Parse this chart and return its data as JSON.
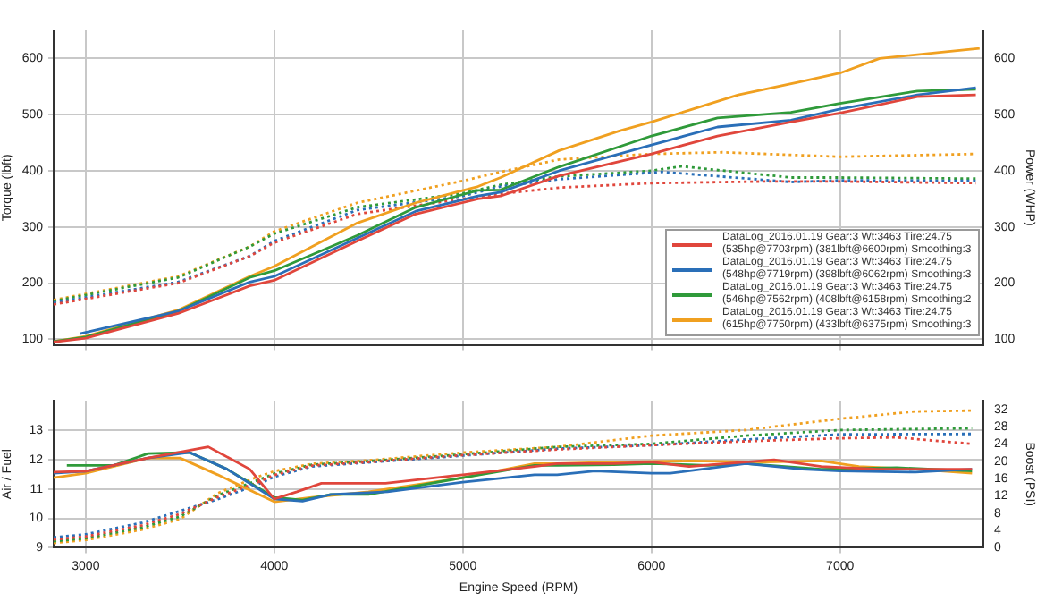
{
  "chart_data": [
    {
      "type": "line",
      "ylabel": "Torque (lbft)",
      "y2label": "Power (WHP)",
      "xlim": [
        2830,
        7760
      ],
      "xticks": [
        3000,
        4000,
        5000,
        6000,
        7000
      ],
      "ylim": [
        90,
        650
      ],
      "yticks": [
        100,
        200,
        300,
        400,
        500,
        600
      ],
      "y2lim": [
        90,
        650
      ],
      "y2ticks": [
        100,
        200,
        300,
        400,
        500,
        600
      ],
      "grid": true,
      "legend": "bottom right",
      "tick_labels": "y",
      "series": [
        {
          "name": "DataLog_2016.01.19 Gear:3 Wt:3463 Tire:24.75 (535hp@7703rpm) (381lbft@6600rpm) Smoothing:3",
          "color": "#e0463c",
          "axis": "y2",
          "x": [
            2830,
            3000,
            3490,
            3870,
            4000,
            4440,
            4750,
            5080,
            5200,
            5510,
            6000,
            6350,
            6740,
            7000,
            7410,
            7720
          ],
          "values": [
            95,
            102,
            146,
            195,
            205,
            275,
            323,
            350,
            355,
            391,
            430,
            462,
            487,
            503,
            532,
            535
          ]
        },
        {
          "name": "DataLog_2016.01.19 Gear:3 Wt:3463 Tire:24.75 (548hp@7719rpm) (398lbft@6062rpm) Smoothing:3",
          "color": "#2a6fb8",
          "axis": "y2",
          "x": [
            2970,
            3490,
            3870,
            4000,
            4440,
            4750,
            5080,
            5200,
            5510,
            6000,
            6350,
            6740,
            7000,
            7410,
            7720
          ],
          "values": [
            110,
            150,
            202,
            212,
            280,
            328,
            355,
            362,
            400,
            446,
            478,
            490,
            510,
            535,
            548
          ]
        },
        {
          "name": "DataLog_2016.01.19 Gear:3 Wt:3463 Tire:24.75 (546hp@7562rpm) (408lbft@6158rpm) Smoothing:2",
          "color": "#2f9a3a",
          "axis": "y2",
          "x": [
            2830,
            3000,
            3490,
            3870,
            4000,
            4440,
            4750,
            5080,
            5200,
            5510,
            6000,
            6350,
            6740,
            7000,
            7410,
            7720
          ],
          "values": [
            96,
            104,
            150,
            210,
            222,
            285,
            335,
            365,
            366,
            407,
            462,
            494,
            504,
            520,
            542,
            545
          ]
        },
        {
          "name": "DataLog_2016.01.19 Gear:3 Wt:3463 Tire:24.75 (615hp@7750rpm) (433lbft@6375rpm) Smoothing:3",
          "color": "#f0a020",
          "axis": "y2",
          "x": [
            2830,
            3000,
            3490,
            3870,
            4000,
            4440,
            4750,
            5080,
            5200,
            5510,
            5830,
            6000,
            6460,
            6780,
            7000,
            7210,
            7740
          ],
          "values": [
            96,
            105,
            152,
            212,
            230,
            307,
            343,
            372,
            388,
            436,
            471,
            487,
            535,
            558,
            574,
            600,
            618
          ]
        },
        {
          "color": "#e0463c",
          "line_style": "dotted",
          "x": [
            2830,
            3490,
            3870,
            4000,
            4440,
            5000,
            5200,
            5510,
            6000,
            6600,
            7000,
            7720
          ],
          "values": [
            162,
            200,
            248,
            272,
            323,
            350,
            359,
            370,
            378,
            381,
            381,
            378
          ]
        },
        {
          "color": "#2a6fb8",
          "line_style": "dotted",
          "x": [
            2830,
            3490,
            3870,
            4000,
            4440,
            5000,
            5200,
            5510,
            6062,
            6740,
            7000,
            7720
          ],
          "values": [
            165,
            202,
            248,
            275,
            330,
            355,
            372,
            385,
            398,
            380,
            383,
            382
          ]
        },
        {
          "color": "#2f9a3a",
          "line_style": "dotted",
          "x": [
            2830,
            3490,
            3870,
            4000,
            4440,
            5000,
            5200,
            5510,
            6000,
            6158,
            6740,
            7000,
            7720
          ],
          "values": [
            168,
            210,
            265,
            288,
            335,
            360,
            375,
            390,
            400,
            408,
            388,
            388,
            386
          ]
        },
        {
          "color": "#f0a020",
          "line_style": "dotted",
          "x": [
            2830,
            3490,
            3870,
            4000,
            4440,
            5000,
            5200,
            5510,
            6000,
            6375,
            7000,
            7720
          ],
          "values": [
            170,
            212,
            265,
            292,
            343,
            382,
            398,
            420,
            430,
            433,
            425,
            430
          ]
        }
      ]
    },
    {
      "type": "line",
      "xlabel": "Engine Speed (RPM)",
      "ylabel": "Air / Fuel",
      "y2label": "Boost (PSI)",
      "xlim": [
        2830,
        7760
      ],
      "xticks": [
        3000,
        4000,
        5000,
        6000,
        7000
      ],
      "ylim": [
        9,
        14
      ],
      "yticks": [
        9,
        10,
        11,
        12,
        13
      ],
      "y2lim": [
        0,
        34
      ],
      "y2ticks": [
        0,
        4,
        8,
        12,
        16,
        20,
        24,
        28,
        32
      ],
      "grid": true,
      "series": [
        {
          "color": "#e0463c",
          "x": [
            2830,
            3000,
            3330,
            3650,
            3870,
            4000,
            4120,
            4250,
            4590,
            5000,
            5380,
            5500,
            5800,
            6000,
            6200,
            6650,
            6900,
            7200,
            7700
          ],
          "values": [
            11.57,
            11.6,
            12.05,
            12.43,
            11.67,
            10.66,
            10.9,
            11.19,
            11.19,
            11.48,
            11.76,
            11.86,
            11.86,
            11.91,
            11.76,
            11.99,
            11.76,
            11.67,
            11.67
          ]
        },
        {
          "color": "#2a6fb8",
          "x": [
            2830,
            3000,
            3330,
            3550,
            3750,
            4000,
            4150,
            4300,
            4600,
            5000,
            5380,
            5500,
            5700,
            6000,
            6100,
            6500,
            6800,
            7000,
            7400,
            7700
          ],
          "values": [
            11.53,
            11.6,
            12.05,
            12.24,
            11.67,
            10.66,
            10.58,
            10.81,
            10.9,
            11.23,
            11.48,
            11.48,
            11.61,
            11.53,
            11.53,
            11.86,
            11.67,
            11.61,
            11.57,
            11.67
          ]
        },
        {
          "color": "#2f9a3a",
          "x": [
            2900,
            3000,
            3150,
            3330,
            3550,
            3750,
            4000,
            4150,
            4300,
            4500,
            5000,
            5380,
            5500,
            5800,
            6000,
            6300,
            6500,
            6900,
            7300,
            7700
          ],
          "values": [
            11.8,
            11.8,
            11.8,
            12.2,
            12.24,
            11.67,
            10.71,
            10.62,
            10.81,
            10.81,
            11.38,
            11.8,
            11.8,
            11.82,
            11.86,
            11.8,
            11.86,
            11.67,
            11.72,
            11.61
          ]
        },
        {
          "color": "#f0a020",
          "x": [
            2830,
            3000,
            3330,
            3500,
            3700,
            4000,
            4200,
            4500,
            5000,
            5380,
            5500,
            5800,
            6200,
            6600,
            6900,
            7100,
            7400,
            7700
          ],
          "values": [
            11.38,
            11.53,
            12.05,
            12.05,
            11.48,
            10.56,
            10.71,
            10.9,
            11.38,
            11.86,
            11.86,
            11.91,
            11.95,
            11.91,
            11.95,
            11.76,
            11.67,
            11.53
          ]
        },
        {
          "color": "#e0463c",
          "axis": "y2",
          "line_style": "dotted",
          "x": [
            2830,
            3000,
            3300,
            3500,
            3700,
            3900,
            4000,
            4200,
            4500,
            5000,
            5500,
            6000,
            6500,
            7000,
            7300,
            7700
          ],
          "values": [
            1.9,
            2.6,
            5.2,
            7.8,
            11.7,
            14.9,
            16.8,
            19,
            19.8,
            21.4,
            22.7,
            23.7,
            24.6,
            25.3,
            25.5,
            24
          ]
        },
        {
          "color": "#2a6fb8",
          "axis": "y2",
          "line_style": "dotted",
          "x": [
            2830,
            3000,
            3300,
            3500,
            3700,
            3900,
            4000,
            4200,
            4500,
            5000,
            5500,
            6000,
            6500,
            7000,
            7700
          ],
          "values": [
            2.4,
            3.1,
            5.8,
            8.5,
            11.2,
            14.4,
            16.4,
            18.8,
            19.7,
            21.3,
            22.9,
            23.7,
            25,
            26.2,
            26.3
          ]
        },
        {
          "color": "#2f9a3a",
          "axis": "y2",
          "line_style": "dotted",
          "x": [
            2830,
            3000,
            3300,
            3500,
            3700,
            3900,
            4000,
            4200,
            4500,
            5000,
            5500,
            6000,
            6500,
            7000,
            7700
          ],
          "values": [
            1.5,
            2.2,
            4.7,
            7.2,
            12.1,
            15.4,
            17.1,
            19.2,
            20,
            21.6,
            23.3,
            24,
            25.9,
            27.2,
            27.6
          ]
        },
        {
          "color": "#f0a020",
          "axis": "y2",
          "line_style": "dotted",
          "x": [
            2830,
            3000,
            3300,
            3500,
            3700,
            3900,
            4000,
            4200,
            4500,
            5000,
            5500,
            6000,
            6500,
            7000,
            7400,
            7700
          ],
          "values": [
            1.1,
            1.8,
            4.2,
            6.6,
            12.6,
            16.2,
            17.7,
            19.4,
            20.2,
            22,
            23.3,
            25.9,
            27.2,
            29.8,
            31.5,
            31.7
          ]
        }
      ]
    }
  ]
}
